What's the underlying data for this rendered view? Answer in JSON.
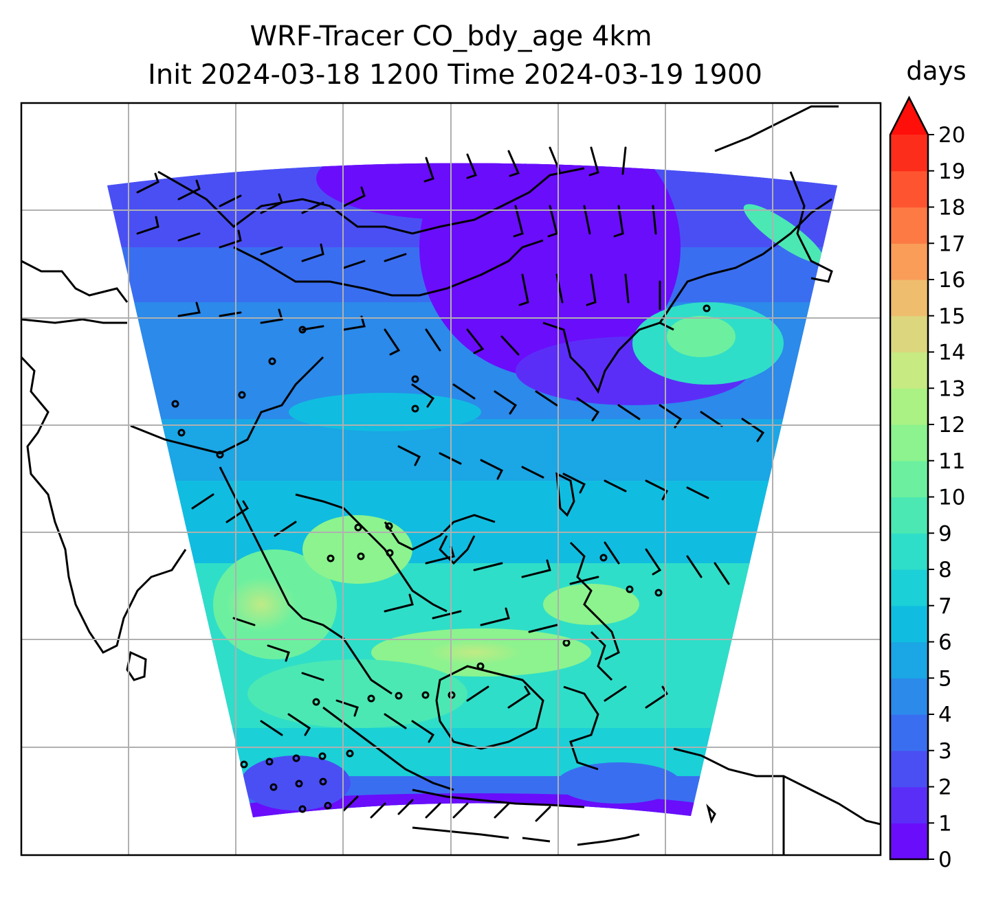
{
  "title": {
    "line1": "WRF-Tracer CO_bdy_age 4km",
    "line2": "Init 2024-03-18 1200 Time 2024-03-19 1900"
  },
  "colorbar": {
    "label": "days",
    "ticks": [
      "0",
      "1",
      "2",
      "3",
      "4",
      "5",
      "6",
      "7",
      "8",
      "9",
      "10",
      "11",
      "12",
      "13",
      "14",
      "15",
      "16",
      "17",
      "18",
      "19",
      "20"
    ],
    "range": [
      0,
      20
    ],
    "extend": "max",
    "colors": [
      "#6a0dfb",
      "#5b2ef8",
      "#4a4ff4",
      "#3a6ef0",
      "#2b8aea",
      "#1ba6e5",
      "#10bde0",
      "#1bd0d6",
      "#2fdec8",
      "#4be8b4",
      "#6cf09f",
      "#8cf38e",
      "#aaf284",
      "#c7ea83",
      "#dcd77f",
      "#efbd6e",
      "#f99d59",
      "#fd7a44",
      "#fe5530",
      "#fd2d1b"
    ],
    "extend_color": "#ff0f0a"
  },
  "map": {
    "gridlines": true,
    "field_name": "CO_bdy_age",
    "colormap": "rainbow",
    "overlay": "wind barbs",
    "coastlines": true
  }
}
